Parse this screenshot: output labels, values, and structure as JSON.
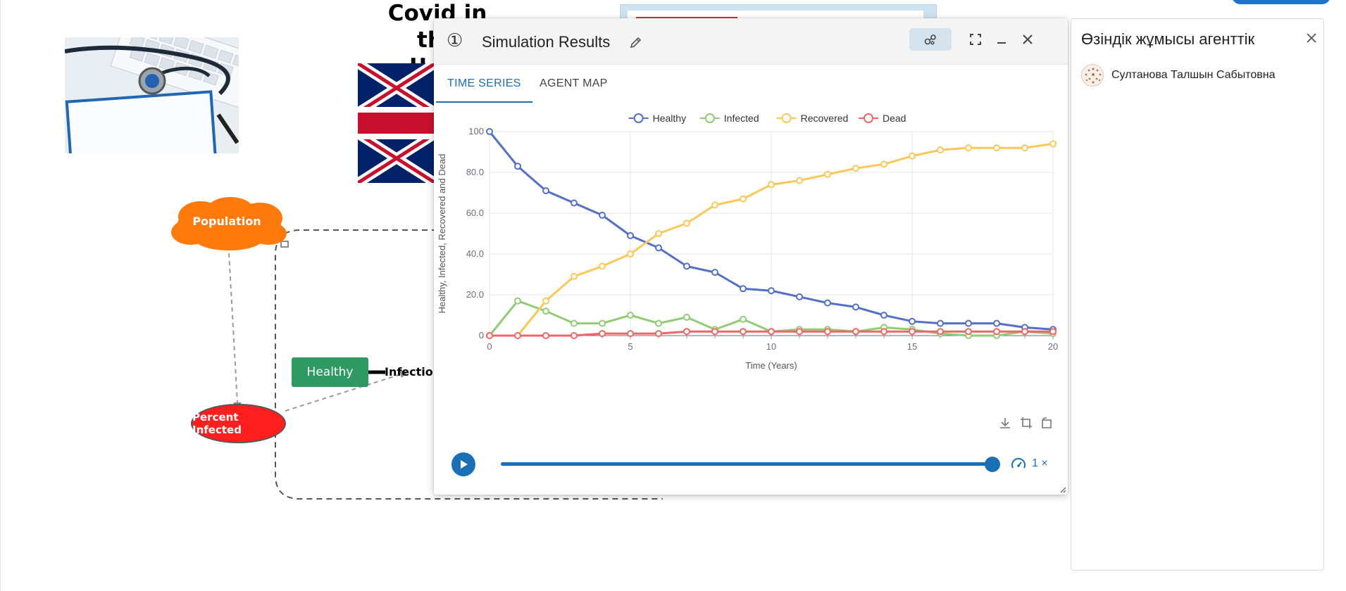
{
  "background": {
    "title_line1": "Covid in the",
    "title_line2": "U"
  },
  "diagram": {
    "population_label": "Population",
    "healthy_label": "Healthy",
    "percent_infected_label": "Percent Infected",
    "infection_label": "Infection"
  },
  "sim_window": {
    "number": "①",
    "title": "Simulation Results",
    "tabs": [
      {
        "label": "TIME SERIES",
        "active": true
      },
      {
        "label": "AGENT MAP",
        "active": false
      }
    ],
    "speed_label": "1 ×",
    "progress": 1.0
  },
  "chart_data": {
    "type": "line",
    "title": "",
    "xlabel": "Time (Years)",
    "ylabel": "Healthy, Infected, Recovered and Dead",
    "xlim": [
      0,
      20
    ],
    "ylim": [
      0,
      100
    ],
    "x_ticks": [
      "0",
      "5",
      "10",
      "15",
      "20"
    ],
    "y_ticks": [
      "0",
      "20.0",
      "40.0",
      "60.0",
      "80.0",
      "100"
    ],
    "legend_position": "top-center",
    "grid": true,
    "x": [
      0,
      1,
      2,
      3,
      4,
      5,
      6,
      7,
      8,
      9,
      10,
      11,
      12,
      13,
      14,
      15,
      16,
      17,
      18,
      19,
      20
    ],
    "series": [
      {
        "name": "Healthy",
        "color": "#5470c6",
        "values": [
          100,
          83,
          71,
          65,
          59,
          49,
          43,
          34,
          31,
          23,
          22,
          19,
          16,
          14,
          10,
          7,
          6,
          6,
          6,
          4,
          3
        ]
      },
      {
        "name": "Infected",
        "color": "#91cc75",
        "values": [
          0,
          17,
          12,
          6,
          6,
          10,
          6,
          9,
          3,
          8,
          2,
          3,
          3,
          2,
          4,
          3,
          1,
          0,
          0,
          2,
          1
        ]
      },
      {
        "name": "Recovered",
        "color": "#fac858",
        "values": [
          0,
          0,
          17,
          29,
          34,
          40,
          50,
          55,
          64,
          67,
          74,
          76,
          79,
          82,
          84,
          88,
          91,
          92,
          92,
          92,
          94
        ]
      },
      {
        "name": "Dead",
        "color": "#ee6666",
        "values": [
          0,
          0,
          0,
          0,
          1,
          1,
          1,
          2,
          2,
          2,
          2,
          2,
          2,
          2,
          2,
          2,
          2,
          2,
          2,
          2,
          2
        ]
      }
    ]
  },
  "right_panel": {
    "title": "Өзіндік жұмысы агенттік",
    "user_name": "Султанова Талшын Сабытовна"
  }
}
